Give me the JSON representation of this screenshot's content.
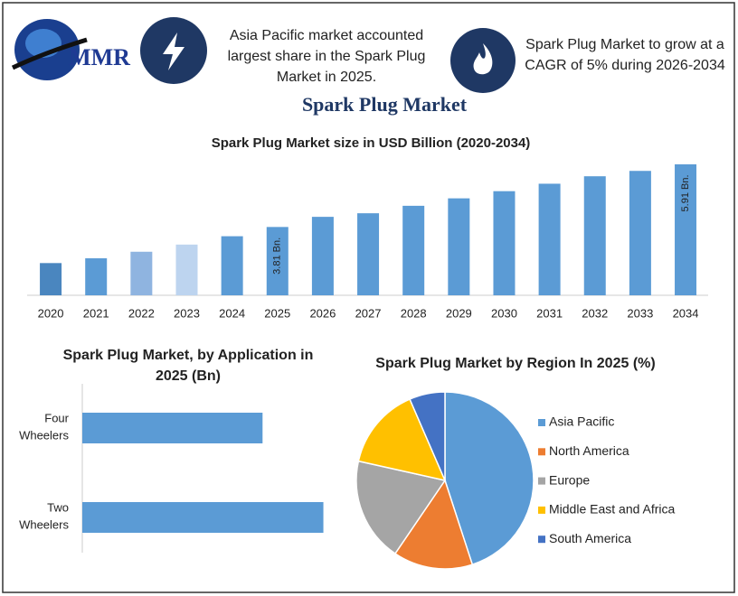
{
  "header": {
    "logo": "MMR",
    "fact1": "Asia Pacific market accounted largest share in the Spark Plug Market in 2025.",
    "fact2": "Spark Plug Market to grow at a CAGR of 5% during 2026-2034",
    "title": "Spark Plug Market"
  },
  "chart_data": [
    {
      "type": "bar",
      "title": "Spark Plug Market size in USD Billion (2020-2034)",
      "categories": [
        "2020",
        "2021",
        "2022",
        "2023",
        "2024",
        "2025",
        "2026",
        "2027",
        "2028",
        "2029",
        "2030",
        "2031",
        "2032",
        "2033",
        "2034"
      ],
      "values": [
        2.6,
        2.76,
        2.98,
        3.22,
        3.5,
        3.81,
        4.15,
        4.27,
        4.52,
        4.77,
        5.01,
        5.26,
        5.51,
        5.69,
        5.91
      ],
      "value_labels": [
        null,
        null,
        null,
        null,
        null,
        "3.81 Bn.",
        null,
        null,
        null,
        null,
        null,
        null,
        null,
        null,
        "5.91 Bn."
      ],
      "colors": [
        "#4a86bf",
        "#5b9bd5",
        "#8fb4e0",
        "#bdd4ef",
        "#5b9bd5",
        "#5b9bd5",
        "#5b9bd5",
        "#5b9bd5",
        "#5b9bd5",
        "#5b9bd5",
        "#5b9bd5",
        "#5b9bd5",
        "#5b9bd5",
        "#5b9bd5",
        "#5b9bd5"
      ],
      "ylim": [
        1.52,
        6.0
      ]
    },
    {
      "type": "hbar",
      "title": "Spark Plug Market, by Application in 2025 (Bn)",
      "categories": [
        "Four Wheelers",
        "Two Wheelers"
      ],
      "values": [
        1.63,
        2.18
      ],
      "color": "#5b9bd5",
      "xlim": [
        0,
        2.2
      ]
    },
    {
      "type": "pie",
      "title": "Spark Plug Market by Region In 2025 (%)",
      "categories": [
        "Asia Pacific",
        "North America",
        "Europe",
        "Middle East and Africa",
        "South America"
      ],
      "values": [
        45,
        14.5,
        19,
        15,
        6.5
      ],
      "colors": [
        "#5b9bd5",
        "#ed7d31",
        "#a5a5a5",
        "#ffc000",
        "#4472c4"
      ],
      "legend": "right"
    }
  ]
}
